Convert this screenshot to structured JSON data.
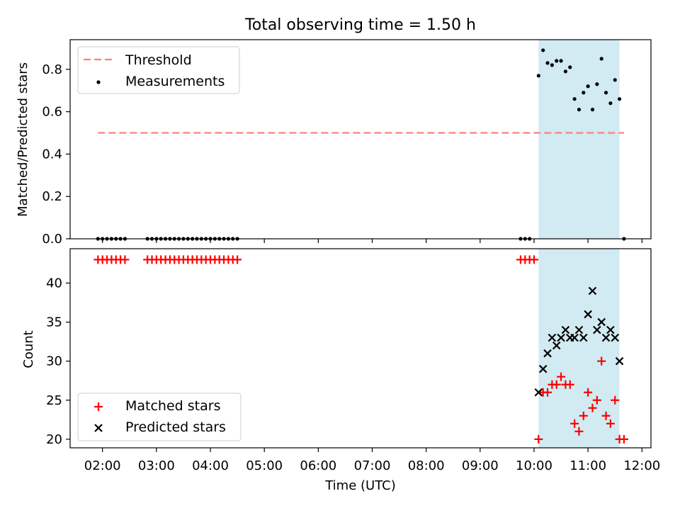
{
  "figure": {
    "title": "Total observing time = 1.50 h"
  },
  "chart_data": [
    {
      "type": "scatter",
      "xaxis": "time",
      "xlim": [
        "01:24",
        "12:10"
      ],
      "ylim": [
        0,
        0.94
      ],
      "ylabel": "Matched/Predicted stars",
      "yticks": [
        0.0,
        0.2,
        0.4,
        0.6,
        0.8
      ],
      "yticklabels": [
        "0.0",
        "0.2",
        "0.4",
        "0.6",
        "0.8"
      ],
      "grid": false,
      "legend_position": "top-left",
      "legend": [
        {
          "label": "Threshold",
          "style": "dashed-line",
          "color": "#ff7f7f"
        },
        {
          "label": "Measurements",
          "style": "dot",
          "color": "#000000"
        }
      ],
      "threshold": {
        "value": 0.5,
        "x_start": "01:55",
        "x_end": "11:40"
      },
      "shaded_interval": {
        "start": "10:05",
        "end": "11:35",
        "color": "#add8e6"
      },
      "series": [
        {
          "name": "Measurements",
          "points": [
            [
              "01:55",
              0
            ],
            [
              "02:00",
              0
            ],
            [
              "02:05",
              0
            ],
            [
              "02:10",
              0
            ],
            [
              "02:15",
              0
            ],
            [
              "02:20",
              0
            ],
            [
              "02:25",
              0
            ],
            [
              "02:50",
              0
            ],
            [
              "02:55",
              0
            ],
            [
              "03:00",
              0
            ],
            [
              "03:05",
              0
            ],
            [
              "03:10",
              0
            ],
            [
              "03:15",
              0
            ],
            [
              "03:20",
              0
            ],
            [
              "03:25",
              0
            ],
            [
              "03:30",
              0
            ],
            [
              "03:35",
              0
            ],
            [
              "03:40",
              0
            ],
            [
              "03:45",
              0
            ],
            [
              "03:50",
              0
            ],
            [
              "03:55",
              0
            ],
            [
              "04:00",
              0
            ],
            [
              "04:05",
              0
            ],
            [
              "04:10",
              0
            ],
            [
              "04:15",
              0
            ],
            [
              "04:20",
              0
            ],
            [
              "04:25",
              0
            ],
            [
              "04:30",
              0
            ],
            [
              "09:45",
              0
            ],
            [
              "09:50",
              0
            ],
            [
              "09:55",
              0
            ],
            [
              "10:05",
              0.77
            ],
            [
              "10:10",
              0.89
            ],
            [
              "10:15",
              0.83
            ],
            [
              "10:20",
              0.82
            ],
            [
              "10:25",
              0.84
            ],
            [
              "10:30",
              0.84
            ],
            [
              "10:35",
              0.79
            ],
            [
              "10:40",
              0.81
            ],
            [
              "10:45",
              0.66
            ],
            [
              "10:50",
              0.61
            ],
            [
              "10:55",
              0.69
            ],
            [
              "11:00",
              0.72
            ],
            [
              "11:05",
              0.61
            ],
            [
              "11:10",
              0.73
            ],
            [
              "11:15",
              0.85
            ],
            [
              "11:20",
              0.69
            ],
            [
              "11:25",
              0.64
            ],
            [
              "11:30",
              0.75
            ],
            [
              "11:35",
              0.66
            ],
            [
              "11:40",
              0
            ]
          ]
        }
      ]
    },
    {
      "type": "scatter",
      "xaxis": "time",
      "xlim": [
        "01:24",
        "12:10"
      ],
      "ylim": [
        18.9,
        44.4
      ],
      "xlabel": "Time (UTC)",
      "ylabel": "Count",
      "yticks": [
        20,
        25,
        30,
        35,
        40
      ],
      "yticklabels": [
        "20",
        "25",
        "30",
        "35",
        "40"
      ],
      "xticks": [
        "02:00",
        "03:00",
        "04:00",
        "05:00",
        "06:00",
        "07:00",
        "08:00",
        "09:00",
        "10:00",
        "11:00",
        "12:00"
      ],
      "xticklabels": [
        "02:00",
        "03:00",
        "04:00",
        "05:00",
        "06:00",
        "07:00",
        "08:00",
        "09:00",
        "10:00",
        "11:00",
        "12:00"
      ],
      "grid": false,
      "legend_position": "bottom-left",
      "legend": [
        {
          "label": "Matched stars",
          "style": "plus",
          "color": "#ff0000"
        },
        {
          "label": "Predicted stars",
          "style": "x",
          "color": "#000000"
        }
      ],
      "shaded_interval": {
        "start": "10:05",
        "end": "11:35",
        "color": "#add8e6"
      },
      "series": [
        {
          "name": "Matched stars",
          "points": [
            [
              "01:55",
              43
            ],
            [
              "02:00",
              43
            ],
            [
              "02:05",
              43
            ],
            [
              "02:10",
              43
            ],
            [
              "02:15",
              43
            ],
            [
              "02:20",
              43
            ],
            [
              "02:25",
              43
            ],
            [
              "02:50",
              43
            ],
            [
              "02:55",
              43
            ],
            [
              "03:00",
              43
            ],
            [
              "03:05",
              43
            ],
            [
              "03:10",
              43
            ],
            [
              "03:15",
              43
            ],
            [
              "03:20",
              43
            ],
            [
              "03:25",
              43
            ],
            [
              "03:30",
              43
            ],
            [
              "03:35",
              43
            ],
            [
              "03:40",
              43
            ],
            [
              "03:45",
              43
            ],
            [
              "03:50",
              43
            ],
            [
              "03:55",
              43
            ],
            [
              "04:00",
              43
            ],
            [
              "04:05",
              43
            ],
            [
              "04:10",
              43
            ],
            [
              "04:15",
              43
            ],
            [
              "04:20",
              43
            ],
            [
              "04:25",
              43
            ],
            [
              "04:30",
              43
            ],
            [
              "09:45",
              43
            ],
            [
              "09:50",
              43
            ],
            [
              "09:55",
              43
            ],
            [
              "10:00",
              43
            ],
            [
              "10:05",
              20
            ],
            [
              "10:10",
              26
            ],
            [
              "10:15",
              26
            ],
            [
              "10:20",
              27
            ],
            [
              "10:25",
              27
            ],
            [
              "10:30",
              28
            ],
            [
              "10:35",
              27
            ],
            [
              "10:40",
              27
            ],
            [
              "10:45",
              22
            ],
            [
              "10:50",
              21
            ],
            [
              "10:55",
              23
            ],
            [
              "11:00",
              26
            ],
            [
              "11:05",
              24
            ],
            [
              "11:10",
              25
            ],
            [
              "11:15",
              30
            ],
            [
              "11:20",
              23
            ],
            [
              "11:25",
              22
            ],
            [
              "11:30",
              25
            ],
            [
              "11:35",
              20
            ],
            [
              "11:40",
              20
            ]
          ]
        },
        {
          "name": "Predicted stars",
          "points": [
            [
              "10:05",
              26
            ],
            [
              "10:10",
              29
            ],
            [
              "10:15",
              31
            ],
            [
              "10:20",
              33
            ],
            [
              "10:25",
              32
            ],
            [
              "10:30",
              33
            ],
            [
              "10:35",
              34
            ],
            [
              "10:40",
              33
            ],
            [
              "10:45",
              33
            ],
            [
              "10:50",
              34
            ],
            [
              "10:55",
              33
            ],
            [
              "11:00",
              36
            ],
            [
              "11:05",
              39
            ],
            [
              "11:10",
              34
            ],
            [
              "11:15",
              35
            ],
            [
              "11:20",
              33
            ],
            [
              "11:25",
              34
            ],
            [
              "11:30",
              33
            ],
            [
              "11:35",
              30
            ]
          ]
        }
      ]
    }
  ]
}
